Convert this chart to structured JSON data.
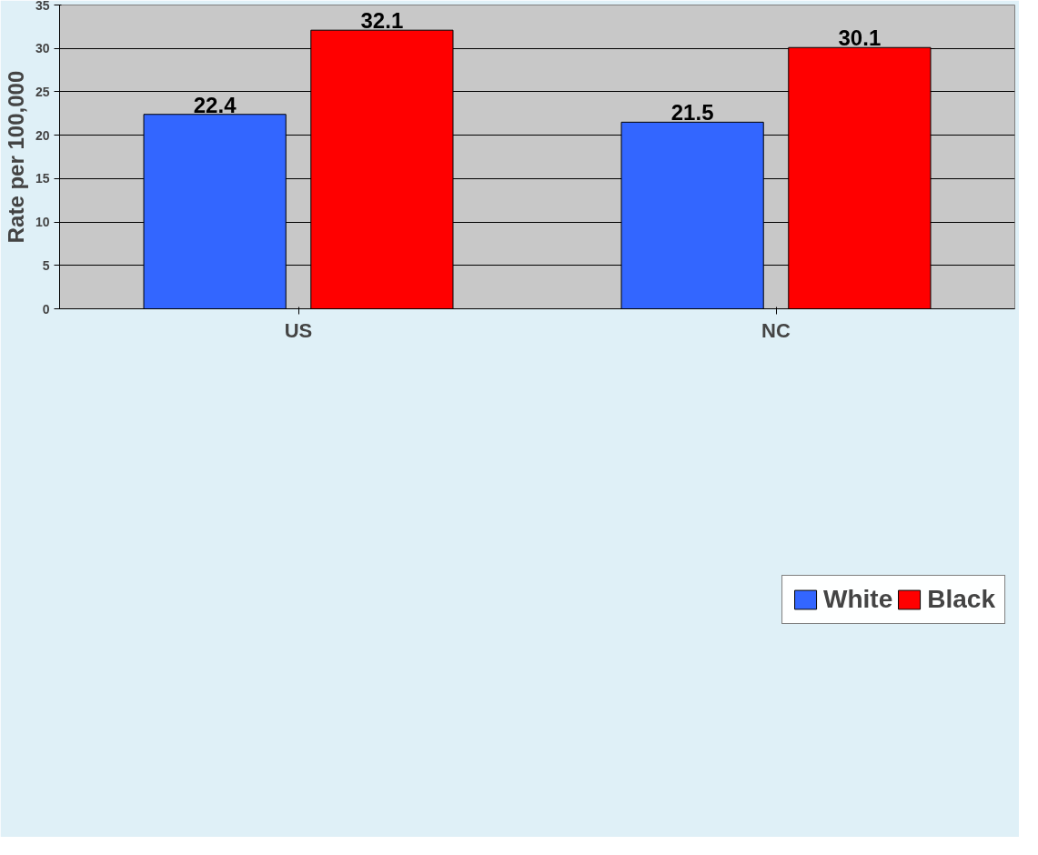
{
  "chart_data": {
    "type": "bar",
    "ylabel": "Rate per 100,000",
    "categories": [
      "US",
      "NC"
    ],
    "series": [
      {
        "name": "White",
        "color": "#3366ff",
        "values": [
          22.4,
          21.5
        ]
      },
      {
        "name": "Black",
        "color": "#ff0000",
        "values": [
          32.1,
          30.1
        ]
      }
    ],
    "ylim": [
      0,
      35
    ],
    "yticks": [
      0,
      5,
      10,
      15,
      20,
      25,
      30,
      35
    ],
    "grid": "y",
    "legend": "bottom",
    "data_labels": true
  }
}
